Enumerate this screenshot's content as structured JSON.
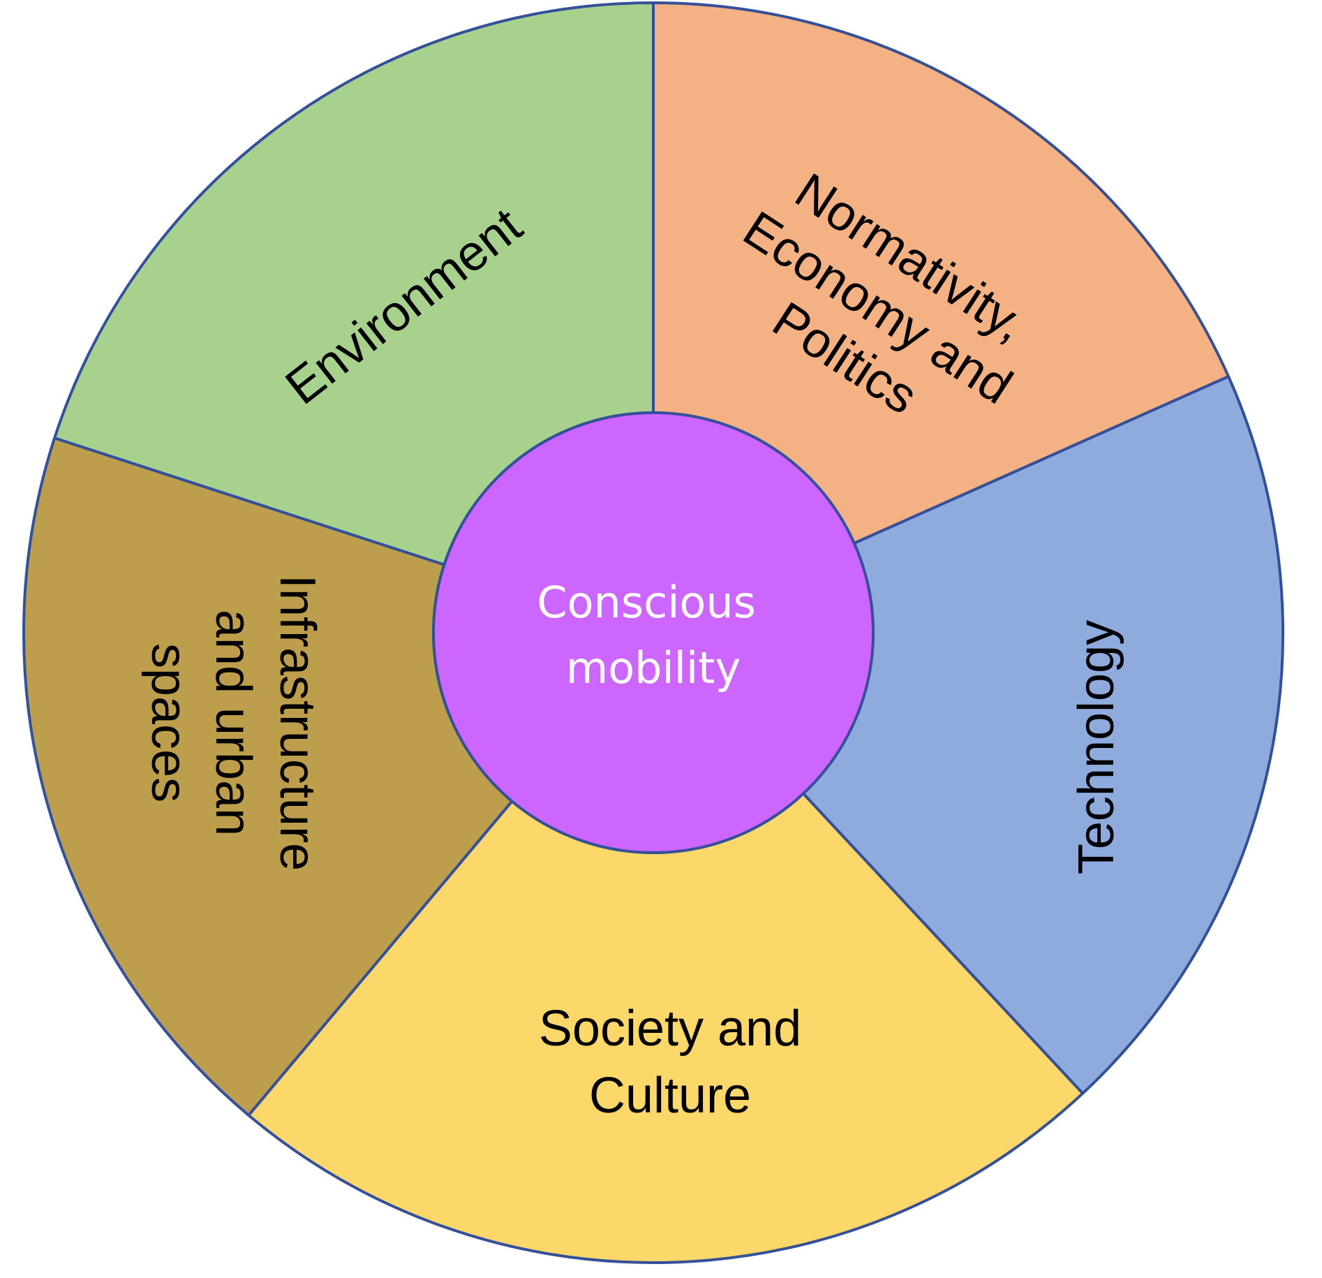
{
  "diagram": {
    "center": {
      "lines": [
        "Conscious",
        "mobility"
      ],
      "color": "#cc66ff"
    },
    "segments": [
      {
        "id": "environment",
        "lines": [
          "Environment"
        ],
        "color": "#a9d18e"
      },
      {
        "id": "normativity",
        "lines": [
          "Normativity,",
          "Economy and",
          "Politics"
        ],
        "color": "#f4b183"
      },
      {
        "id": "technology",
        "lines": [
          "Technology"
        ],
        "color": "#8faadc"
      },
      {
        "id": "society",
        "lines": [
          "Society and",
          "Culture"
        ],
        "color": "#fcd76a"
      },
      {
        "id": "infrastructure",
        "lines": [
          "Infrastructure",
          "and urban",
          "spaces"
        ],
        "color": "#bd9e4d"
      }
    ],
    "outline_color": "#34509a"
  }
}
